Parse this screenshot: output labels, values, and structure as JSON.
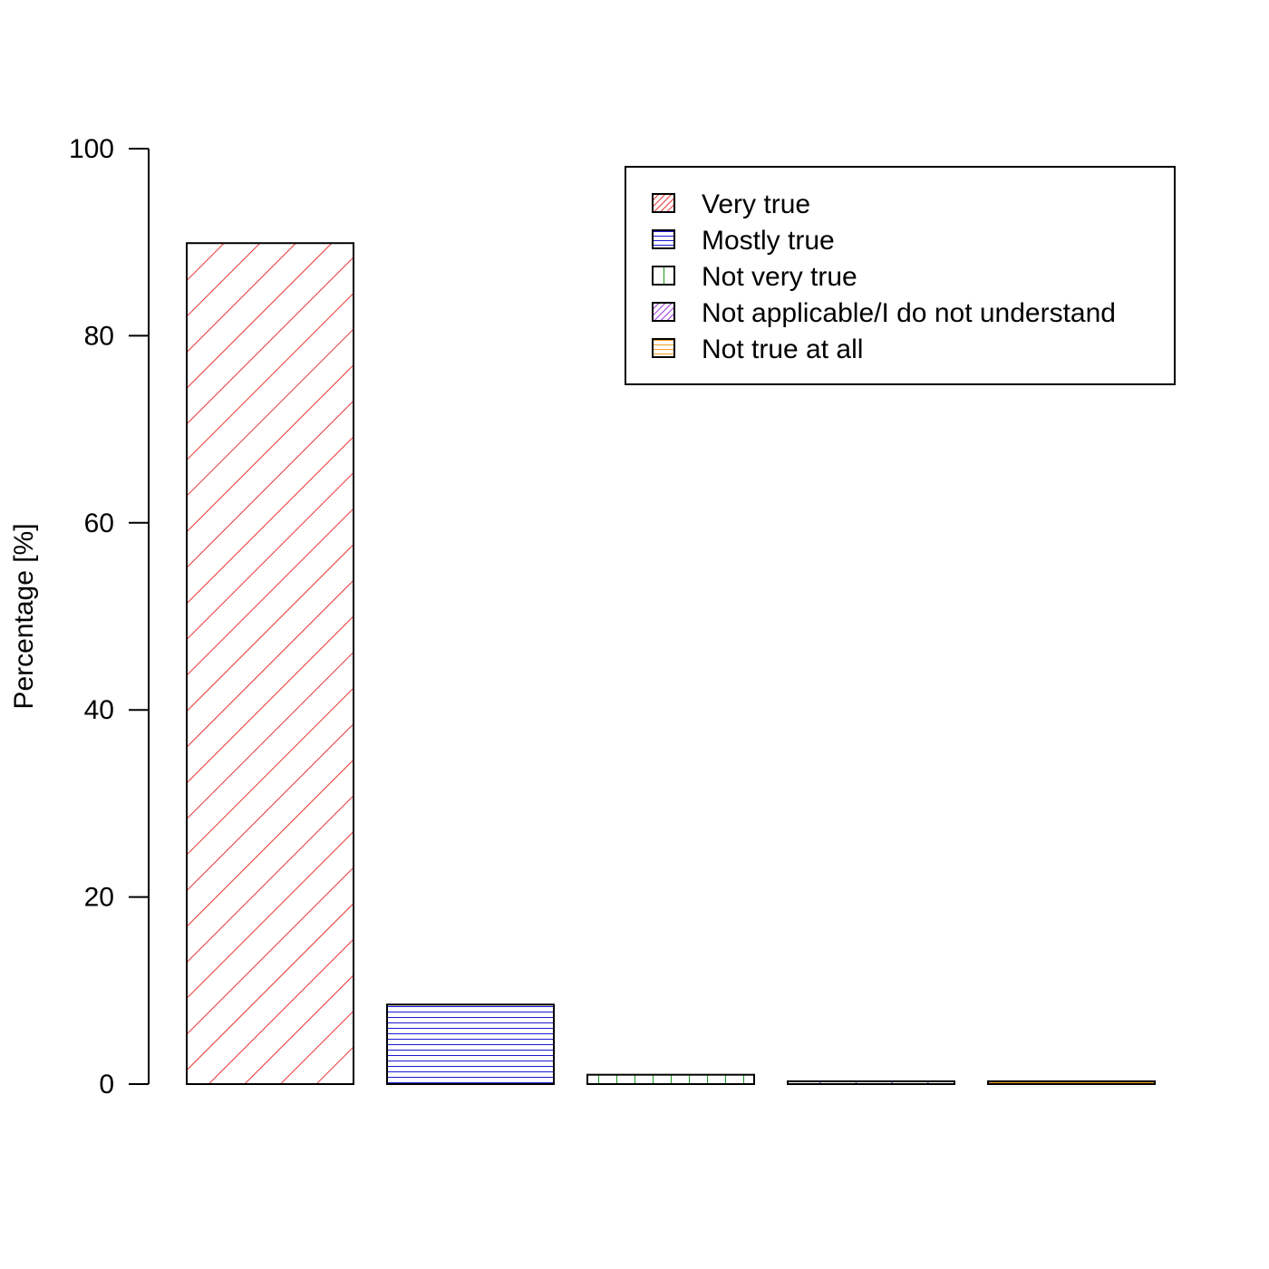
{
  "chart_data": {
    "type": "bar",
    "categories": [
      "Very true",
      "Mostly true",
      "Not very true",
      "Not applicable/I do not understand",
      "Not true at all"
    ],
    "values": [
      89.9,
      8.5,
      1.0,
      0.3,
      0.3
    ],
    "ylabel": "Percentage [%]",
    "ylim": [
      0,
      100
    ],
    "yticks": [
      0,
      20,
      40,
      60,
      80,
      100
    ],
    "grid": false,
    "legend": {
      "placement": "top-right",
      "entries": [
        "Very true",
        "Mostly true",
        "Not very true",
        "Not applicable/I do not understand",
        "Not true at all"
      ]
    },
    "series_styles": [
      {
        "color": "#e8322e",
        "pattern": "diagonal-45"
      },
      {
        "color": "#1a1ad6",
        "pattern": "horizontal"
      },
      {
        "color": "#1a9a1a",
        "pattern": "vertical"
      },
      {
        "color": "#9b30e0",
        "pattern": "diagonal-45"
      },
      {
        "color": "#f0a020",
        "pattern": "horizontal"
      }
    ]
  }
}
